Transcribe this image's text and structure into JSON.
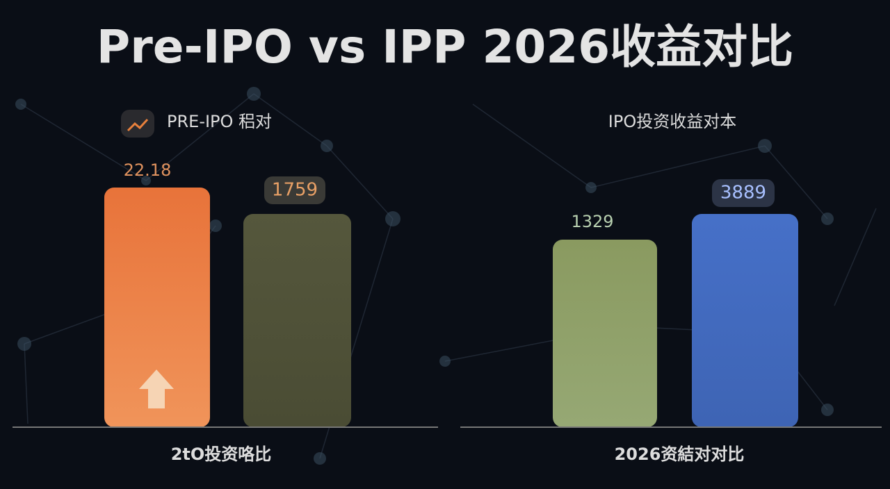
{
  "title": "Pre-IPO vs IPP 2026收益对比",
  "panels": [
    {
      "title": "PRE-IPO 稆对",
      "bars": [
        {
          "label": "22.18"
        },
        {
          "label": "1759"
        }
      ],
      "caption": "2tO投资咯比"
    },
    {
      "title": "IPO投资收益对本",
      "bars": [
        {
          "label": "1329"
        },
        {
          "label": "3889"
        }
      ],
      "caption": "2026资結对对比"
    }
  ]
}
